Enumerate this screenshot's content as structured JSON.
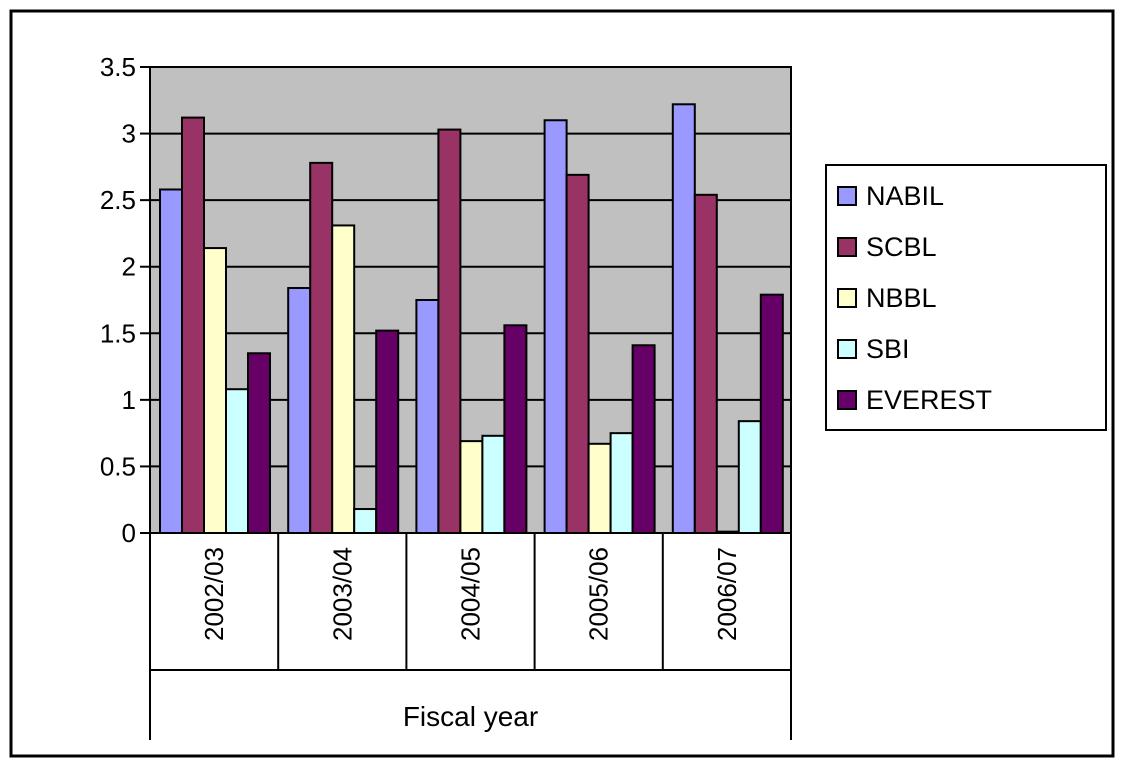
{
  "chart_data": {
    "type": "bar",
    "title": "",
    "xlabel": "Fiscal year",
    "ylabel": "",
    "ylim": [
      0,
      3.5
    ],
    "yticks": [
      0,
      0.5,
      1,
      1.5,
      2,
      2.5,
      3,
      3.5
    ],
    "ytick_labels": [
      "0",
      "0.5",
      "1",
      "1.5",
      "2",
      "2.5",
      "3",
      "3.5"
    ],
    "grid": true,
    "legend_position": "right",
    "plot_background": "#c0c0c0",
    "categories": [
      "2002/03",
      "2003/04",
      "2004/05",
      "2005/06",
      "2006/07"
    ],
    "series": [
      {
        "name": "NABIL",
        "color": "#9999ff",
        "values": [
          2.58,
          1.84,
          1.75,
          3.1,
          3.22
        ]
      },
      {
        "name": "SCBL",
        "color": "#993366",
        "values": [
          3.12,
          2.78,
          3.03,
          2.69,
          2.54
        ]
      },
      {
        "name": "NBBL",
        "color": "#ffffcc",
        "values": [
          2.14,
          2.31,
          0.69,
          0.67,
          0.01
        ]
      },
      {
        "name": "SBI",
        "color": "#ccffff",
        "values": [
          1.08,
          0.18,
          0.73,
          0.75,
          0.84
        ]
      },
      {
        "name": "EVEREST",
        "color": "#660066",
        "values": [
          1.35,
          1.52,
          1.56,
          1.41,
          1.79
        ]
      }
    ]
  }
}
